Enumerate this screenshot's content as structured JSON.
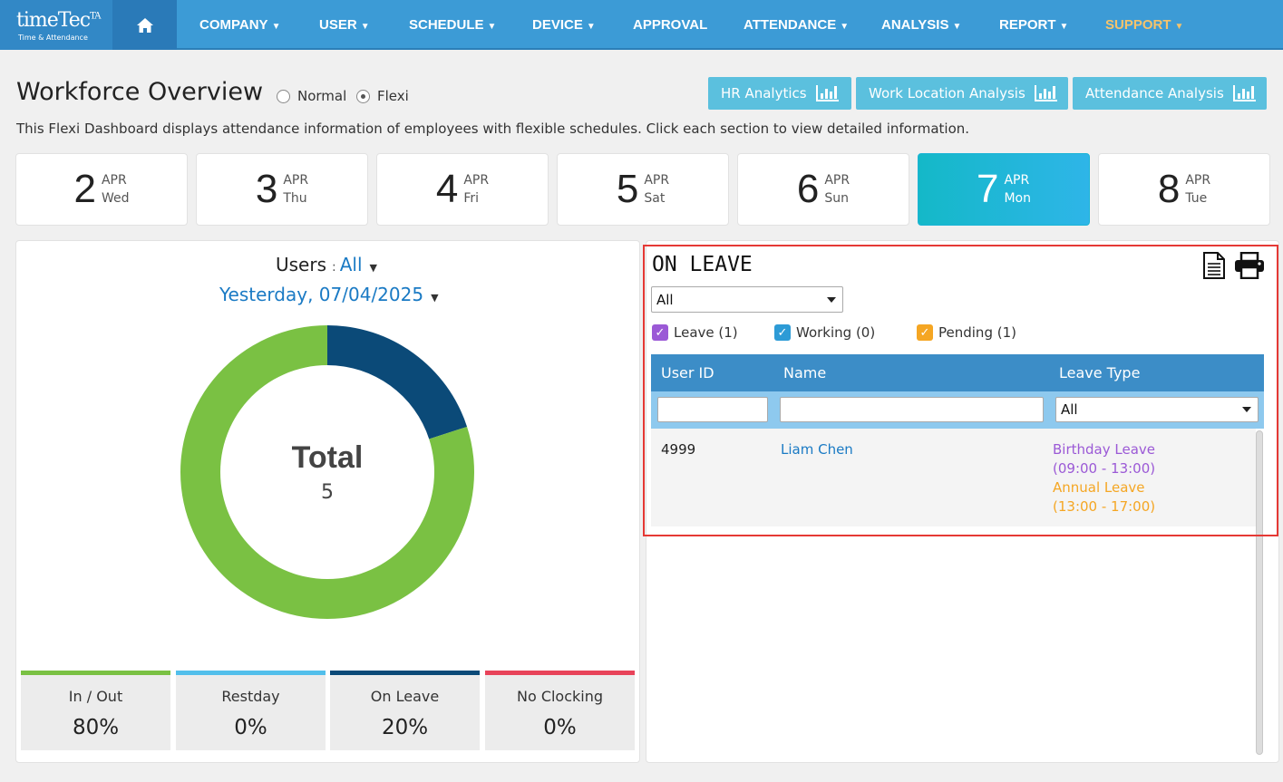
{
  "app": {
    "brand": "timeTec",
    "brand_sup": "TA",
    "brand_sub": "Time & Attendance"
  },
  "nav": [
    {
      "label": "COMPANY",
      "dropdown": true
    },
    {
      "label": "USER",
      "dropdown": true
    },
    {
      "label": "SCHEDULE",
      "dropdown": true
    },
    {
      "label": "DEVICE",
      "dropdown": true
    },
    {
      "label": "APPROVAL",
      "dropdown": false
    },
    {
      "label": "ATTENDANCE",
      "dropdown": true
    },
    {
      "label": "ANALYSIS",
      "dropdown": true
    },
    {
      "label": "REPORT",
      "dropdown": true
    },
    {
      "label": "SUPPORT",
      "dropdown": true
    }
  ],
  "header": {
    "title": "Workforce Overview",
    "mode_options": [
      {
        "label": "Normal",
        "selected": false
      },
      {
        "label": "Flexi",
        "selected": true
      }
    ],
    "buttons": [
      "HR Analytics",
      "Work Location Analysis",
      "Attendance Analysis"
    ],
    "description": "This Flexi Dashboard displays attendance information of employees with flexible schedules. Click each section to view detailed information."
  },
  "dates": [
    {
      "day": "2",
      "month": "APR",
      "weekday": "Wed",
      "active": false
    },
    {
      "day": "3",
      "month": "APR",
      "weekday": "Thu",
      "active": false
    },
    {
      "day": "4",
      "month": "APR",
      "weekday": "Fri",
      "active": false
    },
    {
      "day": "5",
      "month": "APR",
      "weekday": "Sat",
      "active": false
    },
    {
      "day": "6",
      "month": "APR",
      "weekday": "Sun",
      "active": false
    },
    {
      "day": "7",
      "month": "APR",
      "weekday": "Mon",
      "active": true
    },
    {
      "day": "8",
      "month": "APR",
      "weekday": "Tue",
      "active": false
    }
  ],
  "summary": {
    "users_label": "Users",
    "users_colon": ":",
    "users_value": "All",
    "date_value": "Yesterday, 07/04/2025",
    "total_label": "Total",
    "total_value": "5",
    "donut": [
      {
        "name": "On Leave",
        "percent": 20,
        "color": "#0b4a78"
      },
      {
        "name": "In / Out",
        "percent": 80,
        "color": "#7ac143"
      }
    ],
    "stats": [
      {
        "label": "In / Out",
        "value": "80%",
        "color": "#7ac143"
      },
      {
        "label": "Restday",
        "value": "0%",
        "color": "#52bfeb"
      },
      {
        "label": "On Leave",
        "value": "20%",
        "color": "#0b4a78"
      },
      {
        "label": "No Clocking",
        "value": "0%",
        "color": "#e8435a"
      }
    ]
  },
  "on_leave": {
    "title": "ON LEAVE",
    "filter_value": "All",
    "checkboxes": [
      {
        "label": "Leave (1)",
        "color": "#9b59d6",
        "checked": true
      },
      {
        "label": "Working (0)",
        "color": "#2d9bd6",
        "checked": true
      },
      {
        "label": "Pending (1)",
        "color": "#f5a623",
        "checked": true
      }
    ],
    "columns": [
      "User ID",
      "Name",
      "Leave Type"
    ],
    "leave_type_filter": "All",
    "rows": [
      {
        "user_id": "4999",
        "name": "Liam Chen",
        "leaves": [
          {
            "type": "Birthday Leave",
            "time": "(09:00 - 13:00)",
            "color": "#9b59d6"
          },
          {
            "type": "Annual Leave",
            "time": "(13:00 - 17:00)",
            "color": "#f5a623"
          }
        ]
      }
    ]
  }
}
